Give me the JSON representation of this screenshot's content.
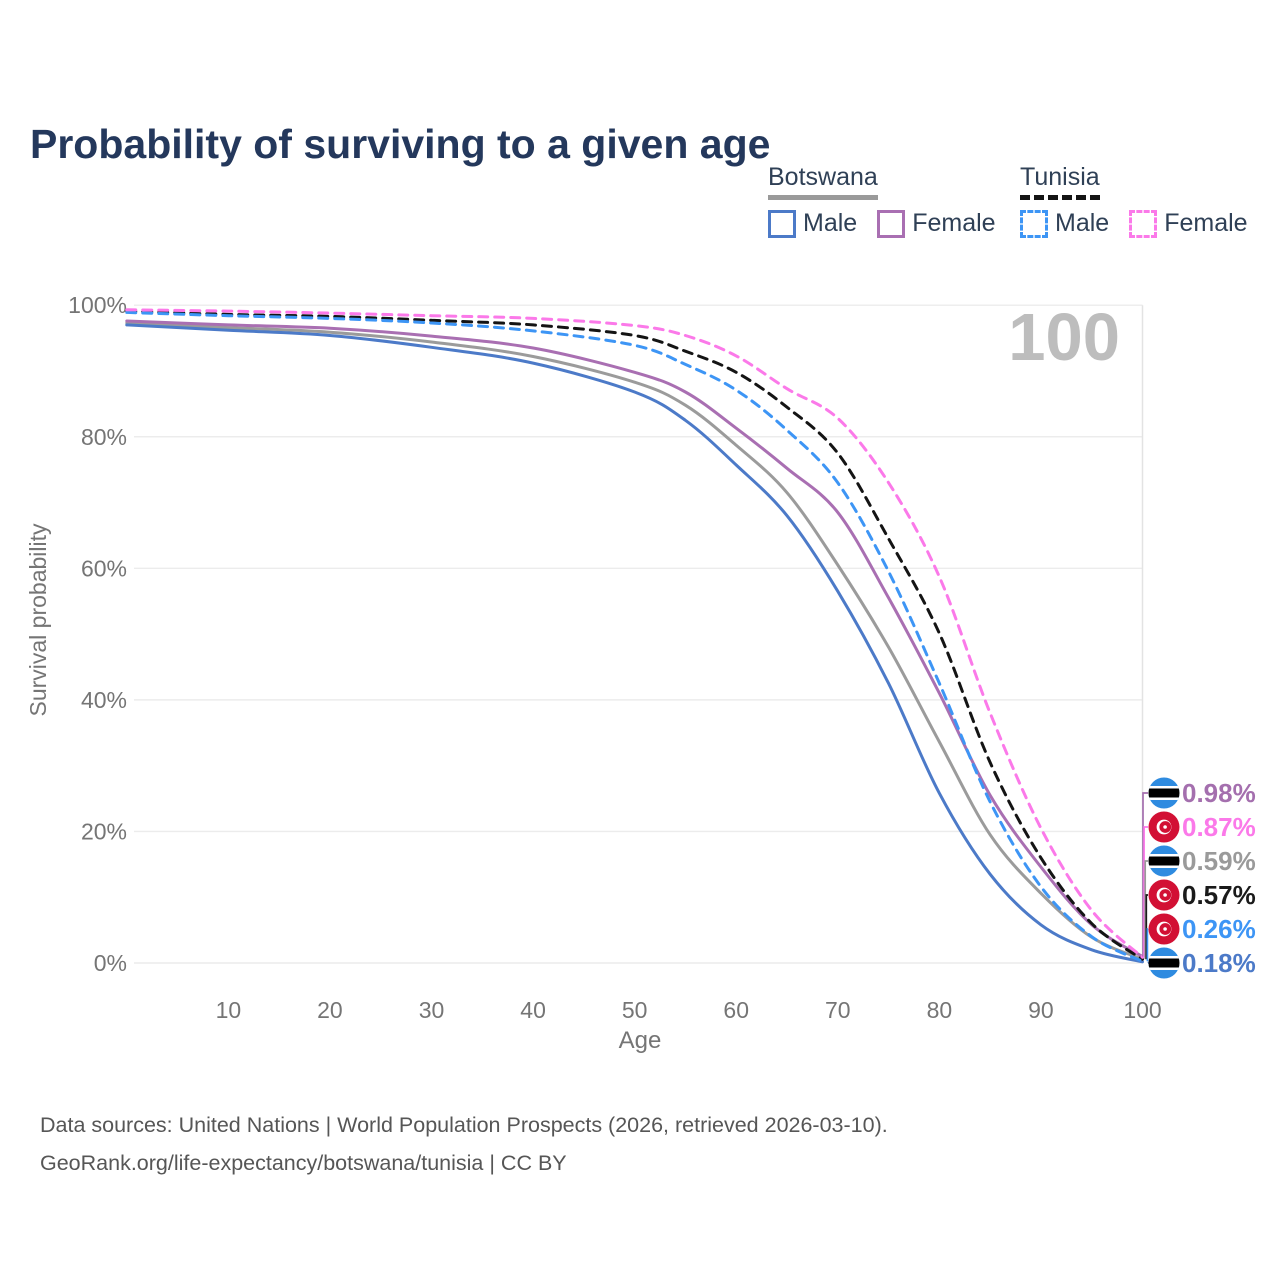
{
  "title": "Probability of surviving to a given age",
  "watermark_age": "100",
  "legend": {
    "groups": [
      {
        "label": "Botswana",
        "line_style": "solid",
        "underline_color": "#9a9a9a",
        "items": [
          {
            "label": "Male",
            "color": "#4c7ac8"
          },
          {
            "label": "Female",
            "color": "#a96fb2"
          }
        ]
      },
      {
        "label": "Tunisia",
        "line_style": "dashed",
        "underline_color": "#141414",
        "items": [
          {
            "label": "Male",
            "color": "#3d95f5"
          },
          {
            "label": "Female",
            "color": "#fb79e9"
          }
        ]
      }
    ]
  },
  "end_labels": [
    {
      "value": "0.98%",
      "pct": 0.98,
      "color": "#a46fae",
      "flag": "botswana"
    },
    {
      "value": "0.87%",
      "pct": 0.87,
      "color": "#fb79e9",
      "flag": "tunisia"
    },
    {
      "value": "0.59%",
      "pct": 0.59,
      "color": "#9a9a9a",
      "flag": "botswana"
    },
    {
      "value": "0.57%",
      "pct": 0.57,
      "color": "#1a1a1a",
      "flag": "tunisia"
    },
    {
      "value": "0.26%",
      "pct": 0.26,
      "color": "#3d95f5",
      "flag": "tunisia"
    },
    {
      "value": "0.18%",
      "pct": 0.18,
      "color": "#4c7ac8",
      "flag": "botswana"
    }
  ],
  "footer": {
    "line1": "Data sources: United Nations | World Population Prospects (2026, retrieved 2026-03-10).",
    "line2": "GeoRank.org/life-expectancy/botswana/tunisia | CC BY"
  },
  "chart_data": {
    "type": "line",
    "title": "Probability of surviving to a given age",
    "xlabel": "Age",
    "ylabel": "Survival probability",
    "xlim": [
      0,
      100
    ],
    "ylim": [
      0,
      100
    ],
    "grid": "horizontal",
    "x_ticks": [
      10,
      20,
      30,
      40,
      50,
      60,
      70,
      80,
      90,
      100
    ],
    "y_ticks": [
      0,
      20,
      40,
      60,
      80,
      100
    ],
    "y_tick_suffix": "%",
    "age_marker": 100,
    "x": [
      0,
      10,
      20,
      30,
      40,
      50,
      55,
      60,
      65,
      70,
      75,
      80,
      85,
      90,
      95,
      100
    ],
    "series": [
      {
        "name": "Botswana (combined)",
        "country": "Botswana",
        "color": "#9b9b9b",
        "dashed": false,
        "values": [
          97.3,
          96.6,
          95.9,
          94.4,
          92.2,
          88.3,
          84.8,
          78.7,
          71.5,
          60.5,
          48.0,
          33.6,
          19.5,
          10.6,
          3.9,
          0.59
        ]
      },
      {
        "name": "Botswana Male",
        "country": "Botswana",
        "color": "#4c7ac8",
        "dashed": false,
        "values": [
          97.0,
          96.2,
          95.4,
          93.6,
          91.2,
          86.8,
          82.5,
          75.7,
          68.0,
          56.5,
          42.5,
          25.8,
          13.5,
          5.8,
          2.0,
          0.18
        ]
      },
      {
        "name": "Botswana Female",
        "country": "Botswana",
        "color": "#a96fb2",
        "dashed": false,
        "values": [
          97.6,
          97.0,
          96.5,
          95.3,
          93.5,
          89.8,
          86.8,
          81.3,
          75.2,
          68.5,
          55.5,
          41.0,
          25.5,
          14.6,
          5.8,
          0.98
        ]
      },
      {
        "name": "Tunisia (combined)",
        "country": "Tunisia",
        "color": "#141414",
        "dashed": true,
        "values": [
          99.1,
          98.6,
          98.3,
          97.7,
          97.0,
          95.4,
          93.0,
          89.8,
          84.5,
          77.5,
          64.5,
          50.1,
          30.5,
          16.0,
          6.0,
          0.57
        ]
      },
      {
        "name": "Tunisia Male",
        "country": "Tunisia",
        "color": "#3d95f5",
        "dashed": true,
        "values": [
          98.9,
          98.4,
          98.0,
          97.3,
          96.1,
          93.9,
          91.0,
          87.1,
          81.0,
          73.0,
          59.5,
          42.5,
          24.5,
          11.6,
          4.0,
          0.26
        ]
      },
      {
        "name": "Tunisia Female",
        "country": "Tunisia",
        "color": "#fb79e9",
        "dashed": true,
        "values": [
          99.3,
          99.1,
          98.8,
          98.4,
          98.0,
          96.9,
          95.4,
          92.3,
          87.3,
          82.8,
          73.0,
          58.7,
          38.0,
          20.5,
          8.0,
          0.87
        ]
      }
    ]
  }
}
